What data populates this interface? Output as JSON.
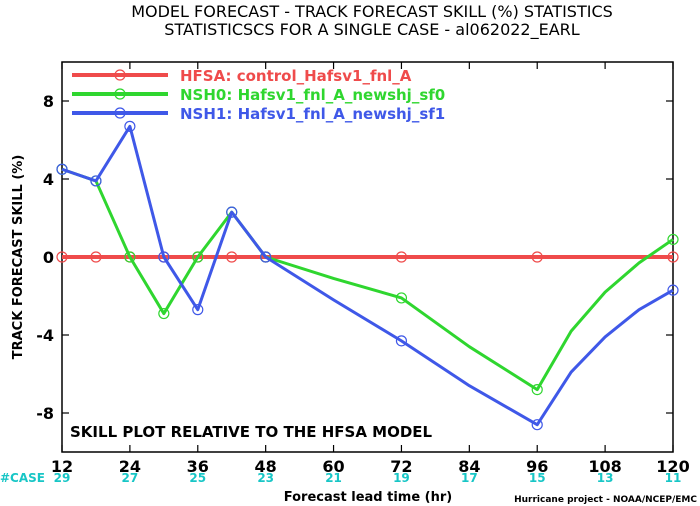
{
  "chart_data": {
    "type": "line",
    "title": "MODEL FORECAST - TRACK FORECAST SKILL (%) STATISTICS",
    "subtitle": "STATISTICSCS FOR A SINGLE CASE - al062022_EARL",
    "xlabel": "Forecast lead time (hr)",
    "ylabel": "TRACK FORECAST SKILL (%)",
    "xlim": [
      12,
      120
    ],
    "ylim": [
      -10,
      10
    ],
    "x_ticks": [
      12,
      24,
      36,
      48,
      60,
      72,
      84,
      96,
      108,
      120
    ],
    "y_ticks": [
      -8,
      -4,
      0,
      4,
      8
    ],
    "annotation": "SKILL PLOT RELATIVE TO THE HFSA MODEL",
    "case_label": "#CASE",
    "case_counts": [
      "29",
      "27",
      "25",
      "23",
      "21",
      "19",
      "17",
      "15",
      "13",
      "11"
    ],
    "credit": "Hurricane project - NOAA/NCEP/EMC",
    "legend_position": "top-left",
    "series": [
      {
        "name": "HFSA: control_Hafsv1_fnl_A",
        "color": "#ef4b4b",
        "line_width": 4,
        "x": [
          12,
          18,
          24,
          30,
          36,
          42,
          48,
          60,
          72,
          84,
          96,
          102,
          108,
          114,
          120
        ],
        "y": [
          0,
          0,
          0,
          0,
          0,
          0,
          0,
          0,
          0,
          0,
          0,
          0,
          0,
          0,
          0
        ],
        "markers_x": [
          12,
          18,
          24,
          30,
          36,
          42,
          48,
          72,
          96,
          120
        ]
      },
      {
        "name": "NSH0: Hafsv1_fnl_A_newshj_sf0",
        "color": "#2fd62f",
        "line_width": 3,
        "x": [
          12,
          18,
          24,
          30,
          36,
          42,
          48,
          60,
          72,
          84,
          96,
          102,
          108,
          114,
          120
        ],
        "y": [
          4.5,
          3.9,
          0.0,
          -2.9,
          0.0,
          2.3,
          0.0,
          -1.1,
          -2.1,
          -4.6,
          -6.8,
          -3.8,
          -1.8,
          -0.3,
          0.9
        ],
        "markers_x": [
          12,
          18,
          24,
          30,
          36,
          42,
          48,
          72,
          96,
          120
        ]
      },
      {
        "name": "NSH1: Hafsv1_fnl_A_newshj_sf1",
        "color": "#3f58e8",
        "line_width": 3,
        "x": [
          12,
          18,
          24,
          30,
          36,
          42,
          48,
          60,
          72,
          84,
          96,
          102,
          108,
          114,
          120
        ],
        "y": [
          4.5,
          3.9,
          6.7,
          0.0,
          -2.7,
          2.3,
          0.0,
          -2.2,
          -4.3,
          -6.6,
          -8.6,
          -5.9,
          -4.1,
          -2.7,
          -1.7
        ],
        "markers_x": [
          12,
          18,
          24,
          30,
          36,
          42,
          48,
          72,
          96,
          120
        ]
      }
    ]
  }
}
